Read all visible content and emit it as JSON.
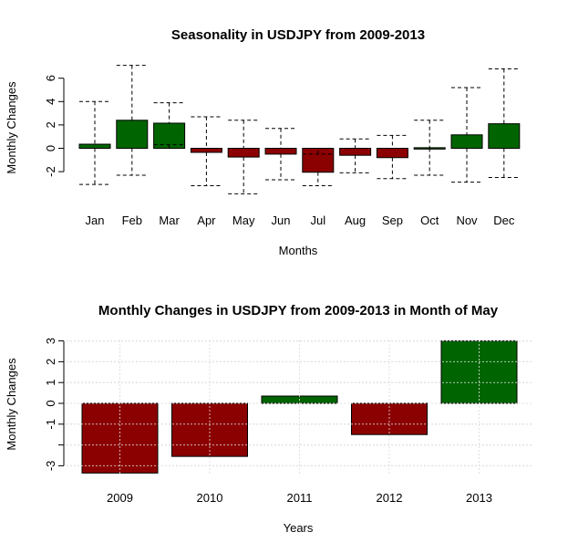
{
  "chart_data": [
    {
      "type": "bar",
      "title": "Seasonality in USDJPY from 2009-2013",
      "xlabel": "Months",
      "ylabel": "Monthly Changes",
      "categories": [
        "Jan",
        "Feb",
        "Mar",
        "Apr",
        "May",
        "Jun",
        "Jul",
        "Aug",
        "Sep",
        "Oct",
        "Nov",
        "Dec"
      ],
      "values": [
        0.35,
        2.4,
        2.15,
        -0.35,
        -0.75,
        -0.5,
        -2.05,
        -0.6,
        -0.8,
        0.05,
        1.15,
        2.1
      ],
      "error_low": [
        -3.1,
        -2.3,
        0.3,
        -3.2,
        -3.9,
        -2.7,
        -3.2,
        -2.1,
        -2.6,
        -2.3,
        -2.9,
        -2.5
      ],
      "error_high": [
        4.0,
        7.1,
        3.9,
        2.7,
        2.4,
        1.7,
        -0.5,
        0.8,
        1.1,
        2.4,
        5.2,
        6.8
      ],
      "yticks": [
        -2,
        0,
        2,
        4,
        6
      ],
      "ylim": [
        -4,
        7.5
      ],
      "grid": false,
      "colors": {
        "positive": "#006400",
        "negative": "#8b0000"
      }
    },
    {
      "type": "bar",
      "title": "Monthly Changes in USDJPY from 2009-2013 in Month of May",
      "xlabel": "Years",
      "ylabel": "Monthly Changes",
      "categories": [
        "2009",
        "2010",
        "2011",
        "2012",
        "2013"
      ],
      "values": [
        -3.35,
        -2.55,
        0.35,
        -1.5,
        3.0
      ],
      "yticks": [
        -3,
        -2,
        -1,
        0,
        1,
        2,
        3
      ],
      "yticklabels": [
        "-3",
        "",
        "-1",
        "0",
        "1",
        "2",
        "3"
      ],
      "ylim": [
        -3.35,
        3.0
      ],
      "grid": true,
      "colors": {
        "positive": "#006400",
        "negative": "#8b0000"
      }
    }
  ]
}
